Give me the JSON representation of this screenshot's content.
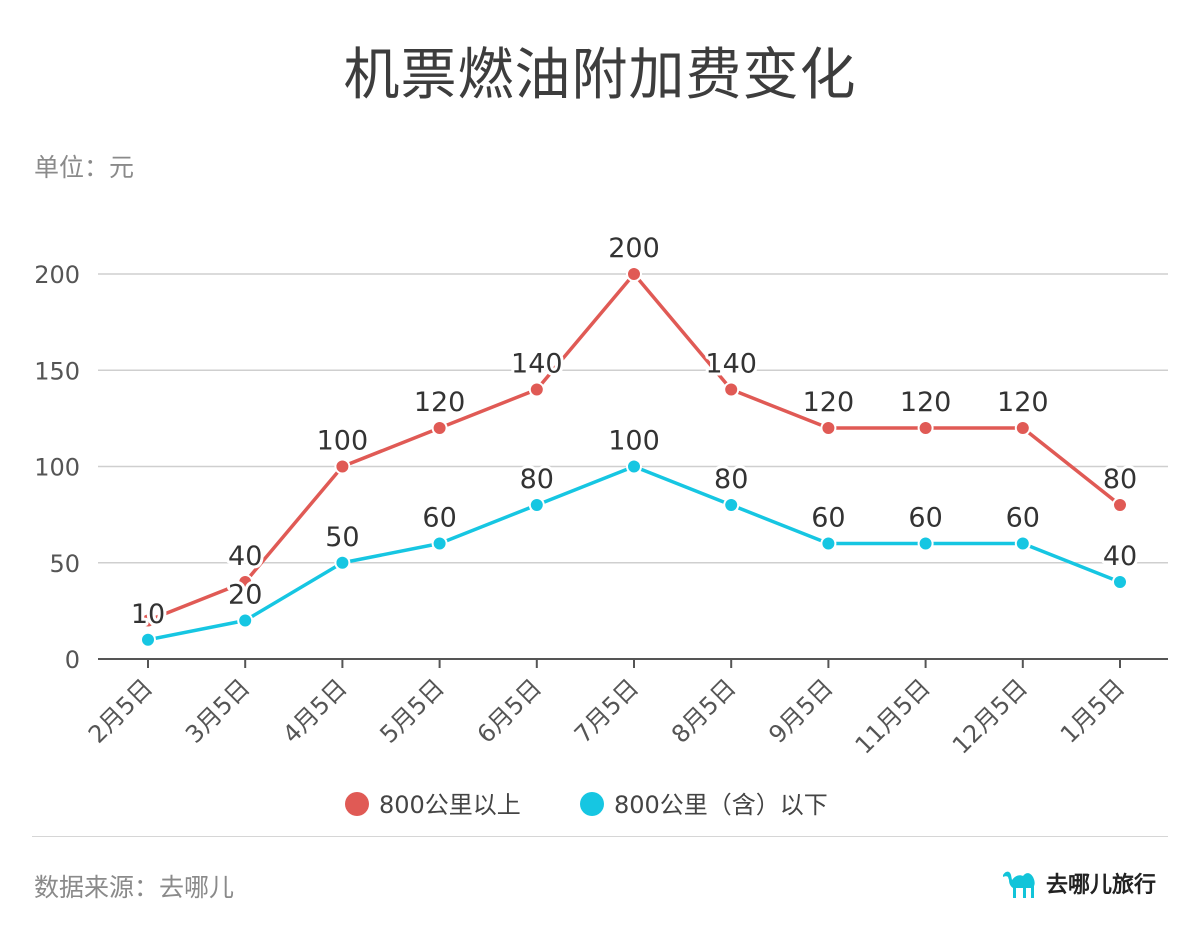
{
  "page": {
    "title": "机票燃油附加费变化",
    "unit_label": "单位：元",
    "source": "数据来源：去哪儿",
    "brand_name": "去哪儿旅行",
    "brand_icon": "camel-logo-icon",
    "brand_color": "#12c4d9"
  },
  "chart_data": {
    "type": "line",
    "title": "机票燃油附加费变化",
    "ylabel": "单位：元",
    "xlabel": "",
    "categories": [
      "2月5日",
      "3月5日",
      "4月5日",
      "5月5日",
      "6月5日",
      "7月5日",
      "8月5日",
      "9月5日",
      "11月5日",
      "12月5日",
      "1月5日"
    ],
    "yticks": [
      0,
      50,
      100,
      150,
      200
    ],
    "ylim": [
      0,
      200
    ],
    "grid": true,
    "legend_position": "bottom",
    "series": [
      {
        "name": "800公里以上",
        "color": "#e05a55",
        "values": [
          20,
          40,
          100,
          120,
          140,
          200,
          140,
          120,
          120,
          120,
          80
        ],
        "labels": [
          "",
          "40",
          "100",
          "120",
          "140",
          "200",
          "140",
          "120",
          "120",
          "120",
          "80"
        ]
      },
      {
        "name": "800公里（含）以下",
        "color": "#16c6e2",
        "values": [
          10,
          20,
          50,
          60,
          80,
          100,
          80,
          60,
          60,
          60,
          40
        ],
        "labels": [
          "10",
          "20",
          "50",
          "60",
          "80",
          "100",
          "80",
          "60",
          "60",
          "60",
          "40"
        ]
      }
    ]
  }
}
